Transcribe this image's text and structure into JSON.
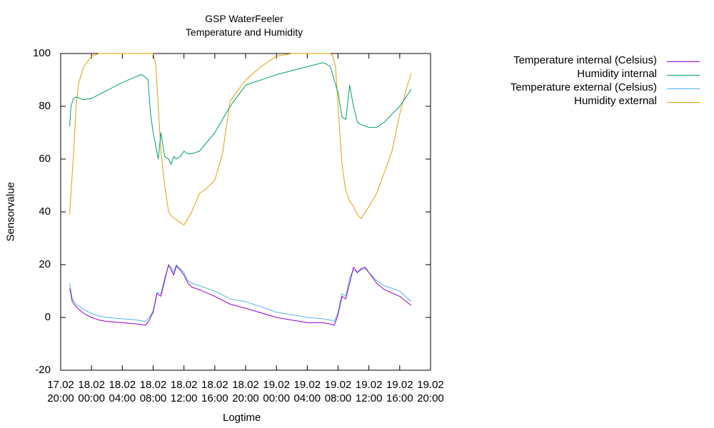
{
  "chart_data": {
    "type": "line",
    "title": "GSP WaterFeeler",
    "subtitle": "Temperature and Humidity",
    "xlabel": "Logtime",
    "ylabel": "Sensorvalue",
    "ylim": [
      -20,
      100
    ],
    "yticks": [
      -20,
      0,
      20,
      40,
      60,
      80,
      100
    ],
    "xlim": [
      "2017-02-17T20:00",
      "2017-02-19T20:00"
    ],
    "xticks": [
      {
        "t": "2017-02-17T20:00",
        "label1": "17.02",
        "label2": "20:00"
      },
      {
        "t": "2017-02-18T00:00",
        "label1": "18.02",
        "label2": "00:00"
      },
      {
        "t": "2017-02-18T04:00",
        "label1": "18.02",
        "label2": "04:00"
      },
      {
        "t": "2017-02-18T08:00",
        "label1": "18.02",
        "label2": "08:00"
      },
      {
        "t": "2017-02-18T12:00",
        "label1": "18.02",
        "label2": "12:00"
      },
      {
        "t": "2017-02-18T16:00",
        "label1": "18.02",
        "label2": "16:00"
      },
      {
        "t": "2017-02-18T20:00",
        "label1": "18.02",
        "label2": "20:00"
      },
      {
        "t": "2017-02-19T00:00",
        "label1": "19.02",
        "label2": "00:00"
      },
      {
        "t": "2017-02-19T04:00",
        "label1": "19.02",
        "label2": "04:00"
      },
      {
        "t": "2017-02-19T08:00",
        "label1": "19.02",
        "label2": "08:00"
      },
      {
        "t": "2017-02-19T12:00",
        "label1": "19.02",
        "label2": "12:00"
      },
      {
        "t": "2017-02-19T16:00",
        "label1": "19.02",
        "label2": "16:00"
      },
      {
        "t": "2017-02-19T20:00",
        "label1": "19.02",
        "label2": "20:00"
      }
    ],
    "grid": false,
    "legend_position": "top-right, outside plot",
    "series": [
      {
        "name": "Temperature internal (Celsius)",
        "color": "#9400d3",
        "x": [
          "2017-02-17T21:10",
          "2017-02-17T21:30",
          "2017-02-17T22:00",
          "2017-02-17T23:00",
          "2017-02-18T00:00",
          "2017-02-18T01:00",
          "2017-02-18T02:00",
          "2017-02-18T04:00",
          "2017-02-18T06:00",
          "2017-02-18T07:00",
          "2017-02-18T07:30",
          "2017-02-18T08:00",
          "2017-02-18T08:30",
          "2017-02-18T09:00",
          "2017-02-18T09:30",
          "2017-02-18T10:00",
          "2017-02-18T10:20",
          "2017-02-18T10:40",
          "2017-02-18T11:00",
          "2017-02-18T11:30",
          "2017-02-18T12:00",
          "2017-02-18T12:30",
          "2017-02-18T13:00",
          "2017-02-18T14:00",
          "2017-02-18T16:00",
          "2017-02-18T18:00",
          "2017-02-18T20:00",
          "2017-02-19T00:00",
          "2017-02-19T04:00",
          "2017-02-19T06:00",
          "2017-02-19T07:00",
          "2017-02-19T07:30",
          "2017-02-19T08:00",
          "2017-02-19T08:30",
          "2017-02-19T09:00",
          "2017-02-19T09:30",
          "2017-02-19T10:00",
          "2017-02-19T10:30",
          "2017-02-19T11:00",
          "2017-02-19T11:30",
          "2017-02-19T12:00",
          "2017-02-19T13:00",
          "2017-02-19T14:00",
          "2017-02-19T16:00",
          "2017-02-19T17:30"
        ],
        "y": [
          11,
          6,
          4,
          1.5,
          0,
          -1,
          -1.5,
          -2,
          -2.5,
          -3,
          -1,
          2,
          9,
          8,
          14,
          20,
          18,
          16,
          19.5,
          18,
          16,
          13,
          11.5,
          10.5,
          8,
          5,
          3.5,
          0,
          -2,
          -2,
          -2.5,
          -3,
          1,
          8,
          7,
          13,
          19,
          17,
          18.5,
          19,
          17,
          13,
          10.5,
          8,
          4.5
        ]
      },
      {
        "name": "Humidity internal",
        "color": "#009e73",
        "x": [
          "2017-02-17T21:10",
          "2017-02-17T21:20",
          "2017-02-17T21:40",
          "2017-02-17T22:00",
          "2017-02-17T23:00",
          "2017-02-18T00:00",
          "2017-02-18T02:00",
          "2017-02-18T04:00",
          "2017-02-18T06:00",
          "2017-02-18T06:30",
          "2017-02-18T07:00",
          "2017-02-18T07:20",
          "2017-02-18T07:40",
          "2017-02-18T08:00",
          "2017-02-18T08:20",
          "2017-02-18T08:40",
          "2017-02-18T09:00",
          "2017-02-18T09:30",
          "2017-02-18T10:00",
          "2017-02-18T10:20",
          "2017-02-18T10:40",
          "2017-02-18T11:00",
          "2017-02-18T11:30",
          "2017-02-18T12:00",
          "2017-02-18T12:30",
          "2017-02-18T13:00",
          "2017-02-18T14:00",
          "2017-02-18T16:00",
          "2017-02-18T18:00",
          "2017-02-18T20:00",
          "2017-02-19T00:00",
          "2017-02-19T04:00",
          "2017-02-19T06:00",
          "2017-02-19T06:30",
          "2017-02-19T07:00",
          "2017-02-19T07:30",
          "2017-02-19T08:00",
          "2017-02-19T08:30",
          "2017-02-19T09:00",
          "2017-02-19T09:30",
          "2017-02-19T10:00",
          "2017-02-19T10:30",
          "2017-02-19T11:00",
          "2017-02-19T12:00",
          "2017-02-19T13:00",
          "2017-02-19T14:00",
          "2017-02-19T16:00",
          "2017-02-19T17:30"
        ],
        "y": [
          72.5,
          80,
          83,
          83.5,
          82.5,
          83,
          86,
          89,
          91.5,
          92,
          91,
          90,
          77,
          70,
          65,
          60,
          70,
          61,
          60,
          58,
          61,
          60,
          61,
          63,
          62,
          62,
          63,
          70,
          80,
          88,
          92,
          95,
          96.5,
          96,
          95,
          90,
          85,
          76,
          75,
          88,
          80,
          74,
          73,
          72,
          72,
          74,
          80,
          86.5
        ]
      },
      {
        "name": "Temperature external (Celsius)",
        "color": "#56b4e9",
        "x": [
          "2017-02-17T21:10",
          "2017-02-17T21:30",
          "2017-02-17T22:00",
          "2017-02-17T23:00",
          "2017-02-18T00:00",
          "2017-02-18T01:00",
          "2017-02-18T02:00",
          "2017-02-18T04:00",
          "2017-02-18T06:00",
          "2017-02-18T07:00",
          "2017-02-18T07:30",
          "2017-02-18T08:00",
          "2017-02-18T08:30",
          "2017-02-18T09:00",
          "2017-02-18T09:30",
          "2017-02-18T10:00",
          "2017-02-18T10:20",
          "2017-02-18T10:40",
          "2017-02-18T11:00",
          "2017-02-18T11:30",
          "2017-02-18T12:00",
          "2017-02-18T12:30",
          "2017-02-18T13:00",
          "2017-02-18T14:00",
          "2017-02-18T16:00",
          "2017-02-18T18:00",
          "2017-02-18T20:00",
          "2017-02-19T00:00",
          "2017-02-19T04:00",
          "2017-02-19T06:00",
          "2017-02-19T07:00",
          "2017-02-19T07:30",
          "2017-02-19T08:00",
          "2017-02-19T08:30",
          "2017-02-19T09:00",
          "2017-02-19T09:30",
          "2017-02-19T10:00",
          "2017-02-19T10:30",
          "2017-02-19T11:00",
          "2017-02-19T11:30",
          "2017-02-19T12:00",
          "2017-02-19T13:00",
          "2017-02-19T14:00",
          "2017-02-19T16:00",
          "2017-02-19T17:30"
        ],
        "y": [
          13,
          7,
          5,
          3,
          1.5,
          0.5,
          0,
          -0.5,
          -1,
          -1.5,
          0,
          2.5,
          9.5,
          9,
          15,
          19.5,
          19,
          17,
          20,
          18.5,
          17,
          14,
          13,
          12,
          10,
          7,
          6,
          2,
          0,
          -0.5,
          -1,
          -1.5,
          2,
          9,
          8,
          15,
          18,
          17,
          18,
          18.5,
          17,
          14,
          12,
          10,
          6
        ]
      },
      {
        "name": "Humidity external",
        "color": "#e69f00",
        "x": [
          "2017-02-17T21:10",
          "2017-02-17T21:20",
          "2017-02-17T21:40",
          "2017-02-17T22:00",
          "2017-02-17T22:20",
          "2017-02-17T23:00",
          "2017-02-18T00:00",
          "2017-02-18T01:00",
          "2017-02-18T02:00",
          "2017-02-18T04:00",
          "2017-02-18T06:00",
          "2017-02-18T06:30",
          "2017-02-18T07:00",
          "2017-02-18T07:30",
          "2017-02-18T08:00",
          "2017-02-18T08:20",
          "2017-02-18T08:40",
          "2017-02-18T09:00",
          "2017-02-18T09:30",
          "2017-02-18T10:00",
          "2017-02-18T10:30",
          "2017-02-18T11:00",
          "2017-02-18T12:00",
          "2017-02-18T13:00",
          "2017-02-18T14:00",
          "2017-02-18T15:00",
          "2017-02-18T16:00",
          "2017-02-18T17:00",
          "2017-02-18T18:00",
          "2017-02-18T20:00",
          "2017-02-18T22:00",
          "2017-02-19T00:00",
          "2017-02-19T02:00",
          "2017-02-19T04:00",
          "2017-02-19T06:00",
          "2017-02-19T06:30",
          "2017-02-19T07:00",
          "2017-02-19T07:20",
          "2017-02-19T07:40",
          "2017-02-19T08:00",
          "2017-02-19T08:30",
          "2017-02-19T09:00",
          "2017-02-19T09:30",
          "2017-02-19T10:00",
          "2017-02-19T10:30",
          "2017-02-19T11:00",
          "2017-02-19T12:00",
          "2017-02-19T13:00",
          "2017-02-19T14:00",
          "2017-02-19T15:00",
          "2017-02-19T16:00",
          "2017-02-19T17:00",
          "2017-02-19T17:30"
        ],
        "y": [
          39,
          47,
          62,
          80,
          89,
          95,
          99,
          100,
          100,
          100,
          100,
          100,
          100,
          100,
          100,
          96,
          80,
          63,
          50,
          40,
          38,
          37,
          35,
          40,
          47,
          49,
          52,
          62,
          82,
          90,
          95,
          99,
          100,
          100,
          100,
          100,
          100,
          99,
          95,
          80,
          58,
          48,
          44,
          42,
          39,
          37.5,
          42,
          47,
          55,
          63,
          77,
          88,
          92.5
        ]
      }
    ]
  }
}
